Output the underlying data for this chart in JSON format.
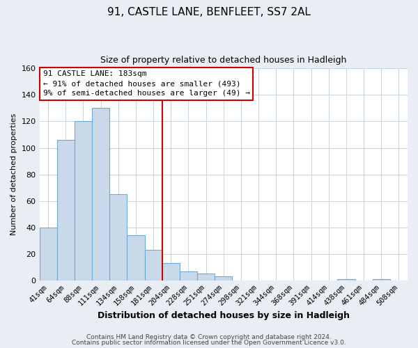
{
  "title": "91, CASTLE LANE, BENFLEET, SS7 2AL",
  "subtitle": "Size of property relative to detached houses in Hadleigh",
  "xlabel": "Distribution of detached houses by size in Hadleigh",
  "ylabel": "Number of detached properties",
  "bar_labels": [
    "41sqm",
    "64sqm",
    "88sqm",
    "111sqm",
    "134sqm",
    "158sqm",
    "181sqm",
    "204sqm",
    "228sqm",
    "251sqm",
    "274sqm",
    "298sqm",
    "321sqm",
    "344sqm",
    "368sqm",
    "391sqm",
    "414sqm",
    "438sqm",
    "461sqm",
    "484sqm",
    "508sqm"
  ],
  "bar_heights": [
    40,
    106,
    120,
    130,
    65,
    34,
    23,
    13,
    7,
    5,
    3,
    0,
    0,
    0,
    0,
    0,
    0,
    1,
    0,
    1,
    0
  ],
  "bar_color": "#c9d9ea",
  "bar_edge_color": "#6aaad4",
  "vline_x": 6.5,
  "vline_color": "#cc0000",
  "annotation_title": "91 CASTLE LANE: 183sqm",
  "annotation_line1": "← 91% of detached houses are smaller (493)",
  "annotation_line2": "9% of semi-detached houses are larger (49) →",
  "annotation_box_edge": "#cc0000",
  "ylim": [
    0,
    160
  ],
  "yticks": [
    0,
    20,
    40,
    60,
    80,
    100,
    120,
    140,
    160
  ],
  "footer1": "Contains HM Land Registry data © Crown copyright and database right 2024.",
  "footer2": "Contains public sector information licensed under the Open Government Licence v3.0.",
  "background_color": "#e8eef4",
  "plot_background": "#ffffff",
  "grid_color": "#c8d4de"
}
